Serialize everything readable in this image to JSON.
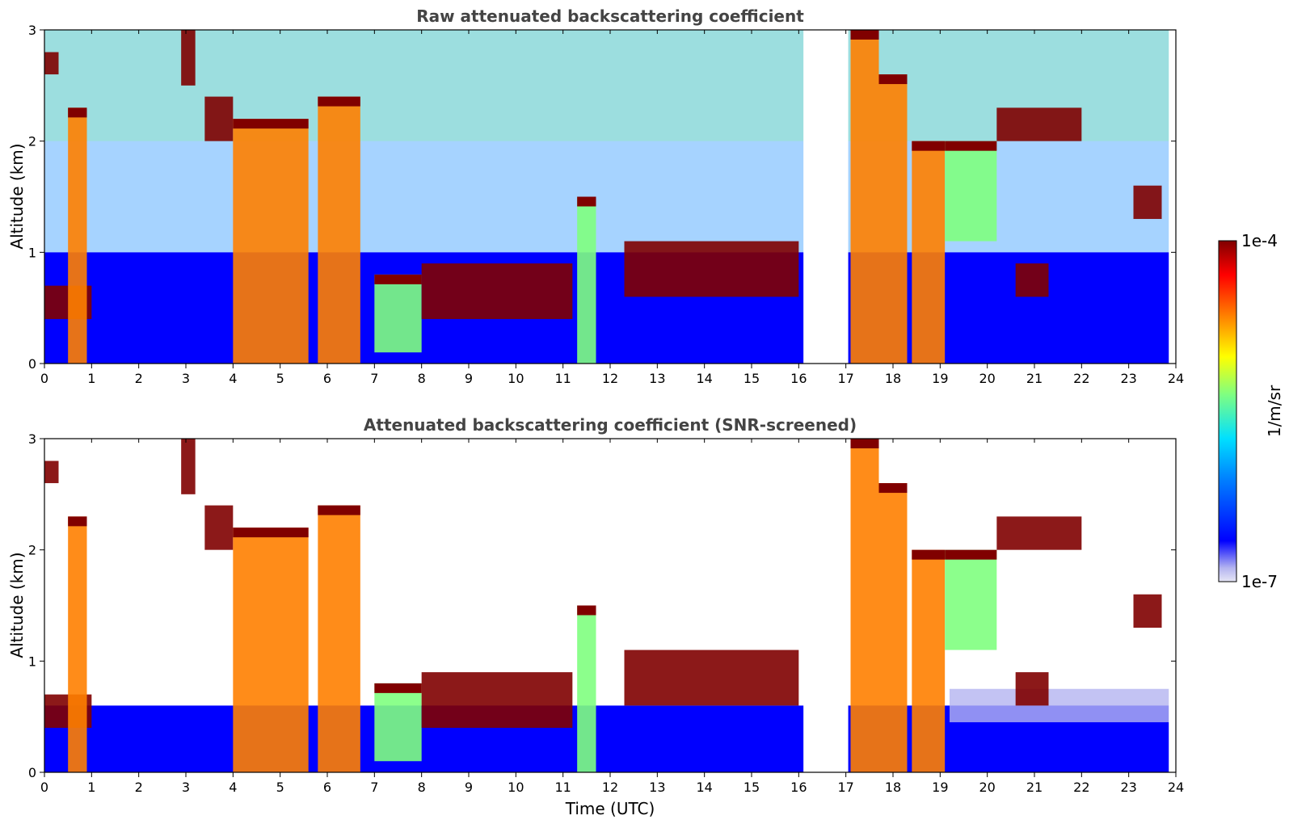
{
  "chart_data": [
    {
      "type": "heatmap",
      "title": "Raw attenuated backscattering coefficient",
      "xlabel": "",
      "ylabel": "Altitude (km)",
      "xlim": [
        0,
        24
      ],
      "ylim": [
        0,
        3
      ],
      "xticks": [
        "0",
        "1",
        "2",
        "3",
        "4",
        "5",
        "6",
        "7",
        "8",
        "9",
        "10",
        "11",
        "12",
        "13",
        "14",
        "15",
        "16",
        "17",
        "18",
        "19",
        "20",
        "21",
        "22",
        "23",
        "24"
      ],
      "yticks": [
        "0",
        "1",
        "2",
        "3"
      ],
      "data_gap_hours": [
        16.1,
        17.05
      ],
      "cloud_layers": [
        {
          "t": [
            0.0,
            0.3
          ],
          "base_km": 2.6,
          "top_km": 2.8
        },
        {
          "t": [
            0.0,
            1.0
          ],
          "base_km": 0.4,
          "top_km": 0.7
        },
        {
          "t": [
            0.5,
            0.9
          ],
          "base_km": 0.0,
          "top_km": 2.3
        },
        {
          "t": [
            2.9,
            3.2
          ],
          "base_km": 2.5,
          "top_km": 3.0
        },
        {
          "t": [
            3.4,
            4.0
          ],
          "base_km": 2.0,
          "top_km": 2.4
        },
        {
          "t": [
            4.0,
            5.6
          ],
          "base_km": 0.0,
          "top_km": 2.2
        },
        {
          "t": [
            5.8,
            6.7
          ],
          "base_km": 0.0,
          "top_km": 2.4
        },
        {
          "t": [
            7.0,
            8.0
          ],
          "base_km": 0.1,
          "top_km": 0.8
        },
        {
          "t": [
            8.0,
            11.2
          ],
          "base_km": 0.4,
          "top_km": 0.9
        },
        {
          "t": [
            11.3,
            11.7
          ],
          "base_km": 0.0,
          "top_km": 1.5
        },
        {
          "t": [
            12.3,
            16.0
          ],
          "base_km": 0.6,
          "top_km": 1.1
        },
        {
          "t": [
            17.1,
            17.7
          ],
          "base_km": 0.0,
          "top_km": 3.0
        },
        {
          "t": [
            17.7,
            18.3
          ],
          "base_km": 0.0,
          "top_km": 2.6
        },
        {
          "t": [
            18.4,
            19.1
          ],
          "base_km": 0.0,
          "top_km": 2.0
        },
        {
          "t": [
            19.1,
            20.2
          ],
          "base_km": 1.1,
          "top_km": 2.0
        },
        {
          "t": [
            20.2,
            22.0
          ],
          "base_km": 2.0,
          "top_km": 2.3
        },
        {
          "t": [
            20.6,
            21.3
          ],
          "base_km": 0.6,
          "top_km": 0.9
        },
        {
          "t": [
            23.1,
            23.7
          ],
          "base_km": 1.3,
          "top_km": 1.6
        }
      ]
    },
    {
      "type": "heatmap",
      "title": "Attenuated backscattering coefficient (SNR-screened)",
      "xlabel": "Time (UTC)",
      "ylabel": "Altitude (km)",
      "xlim": [
        0,
        24
      ],
      "ylim": [
        0,
        3
      ],
      "xticks": [
        "0",
        "1",
        "2",
        "3",
        "4",
        "5",
        "6",
        "7",
        "8",
        "9",
        "10",
        "11",
        "12",
        "13",
        "14",
        "15",
        "16",
        "17",
        "18",
        "19",
        "20",
        "21",
        "22",
        "23",
        "24"
      ],
      "yticks": [
        "0",
        "1",
        "2",
        "3"
      ],
      "data_gap_hours": [
        16.1,
        17.05
      ],
      "cloud_layers": [
        {
          "t": [
            0.0,
            0.3
          ],
          "base_km": 2.6,
          "top_km": 2.8
        },
        {
          "t": [
            0.0,
            1.0
          ],
          "base_km": 0.4,
          "top_km": 0.7
        },
        {
          "t": [
            0.5,
            0.9
          ],
          "base_km": 0.0,
          "top_km": 2.3
        },
        {
          "t": [
            2.9,
            3.2
          ],
          "base_km": 2.5,
          "top_km": 3.0
        },
        {
          "t": [
            3.4,
            4.0
          ],
          "base_km": 2.0,
          "top_km": 2.4
        },
        {
          "t": [
            4.0,
            5.6
          ],
          "base_km": 0.0,
          "top_km": 2.2
        },
        {
          "t": [
            5.8,
            6.7
          ],
          "base_km": 0.0,
          "top_km": 2.4
        },
        {
          "t": [
            7.0,
            8.0
          ],
          "base_km": 0.1,
          "top_km": 0.8
        },
        {
          "t": [
            8.0,
            11.2
          ],
          "base_km": 0.4,
          "top_km": 0.9
        },
        {
          "t": [
            11.3,
            11.7
          ],
          "base_km": 0.0,
          "top_km": 1.5
        },
        {
          "t": [
            12.3,
            16.0
          ],
          "base_km": 0.6,
          "top_km": 1.1
        },
        {
          "t": [
            17.1,
            17.7
          ],
          "base_km": 0.0,
          "top_km": 3.0
        },
        {
          "t": [
            17.7,
            18.3
          ],
          "base_km": 0.0,
          "top_km": 2.6
        },
        {
          "t": [
            18.4,
            19.1
          ],
          "base_km": 0.0,
          "top_km": 2.0
        },
        {
          "t": [
            19.1,
            20.2
          ],
          "base_km": 1.1,
          "top_km": 2.0
        },
        {
          "t": [
            20.2,
            22.0
          ],
          "base_km": 2.0,
          "top_km": 2.3
        },
        {
          "t": [
            20.6,
            21.3
          ],
          "base_km": 0.6,
          "top_km": 0.9
        },
        {
          "t": [
            23.1,
            23.7
          ],
          "base_km": 1.3,
          "top_km": 1.6
        }
      ]
    }
  ],
  "colorbar": {
    "label": "1/m/sr",
    "max_label": "1e-4",
    "min_label": "1e-7",
    "scale": "log",
    "colormap": "jet",
    "colors": [
      "#e6e6f5",
      "#b4b4f0",
      "#0000ff",
      "#0080ff",
      "#00e0ff",
      "#80ff80",
      "#ffff00",
      "#ff8000",
      "#ff0000",
      "#800000"
    ]
  }
}
